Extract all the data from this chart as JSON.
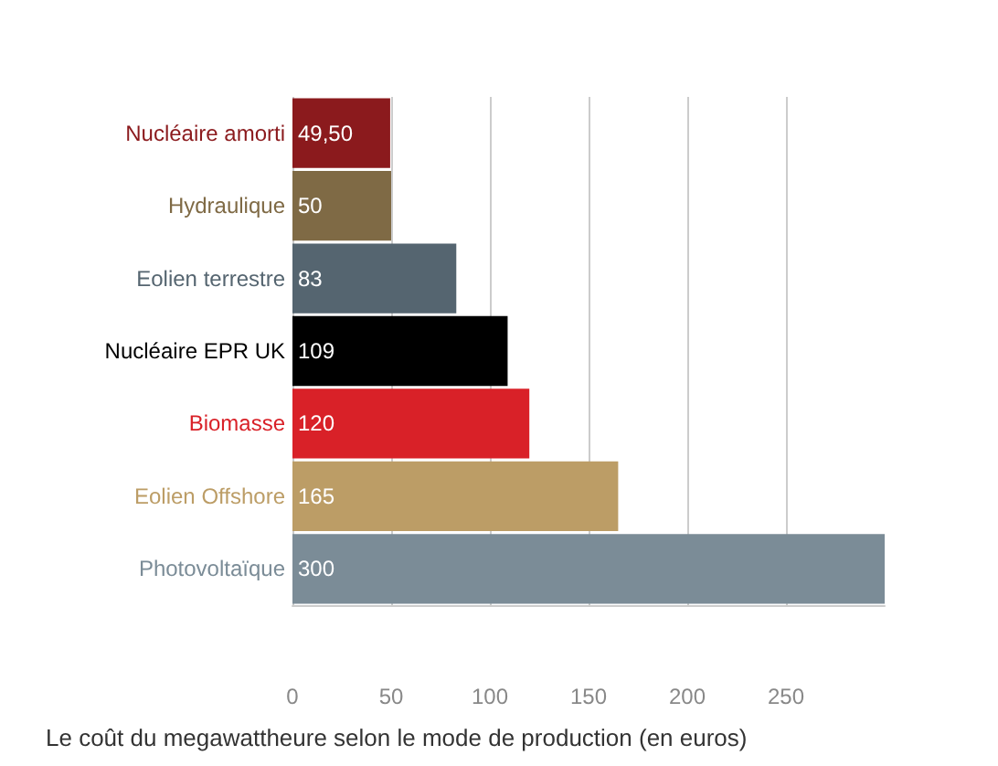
{
  "chart_data": {
    "type": "bar",
    "orientation": "horizontal",
    "title": "Le coût du megawattheure selon le mode de production (en euros)",
    "categories": [
      "Nucléaire amorti",
      "Hydraulique",
      "Eolien terrestre",
      "Nucléaire EPR UK",
      "Biomasse",
      "Eolien Offshore",
      "Photovoltaïque"
    ],
    "values": [
      49.5,
      50,
      83,
      109,
      120,
      165,
      300
    ],
    "value_labels": [
      "49,50",
      "50",
      "83",
      "109",
      "120",
      "165",
      "300"
    ],
    "colors": [
      "#8b1a1d",
      "#7f6a45",
      "#556570",
      "#000000",
      "#d92128",
      "#bc9d66",
      "#7b8c97"
    ],
    "xlim": [
      0,
      300
    ],
    "xticks": [
      0,
      50,
      100,
      150,
      200,
      250
    ],
    "grid": "x"
  }
}
